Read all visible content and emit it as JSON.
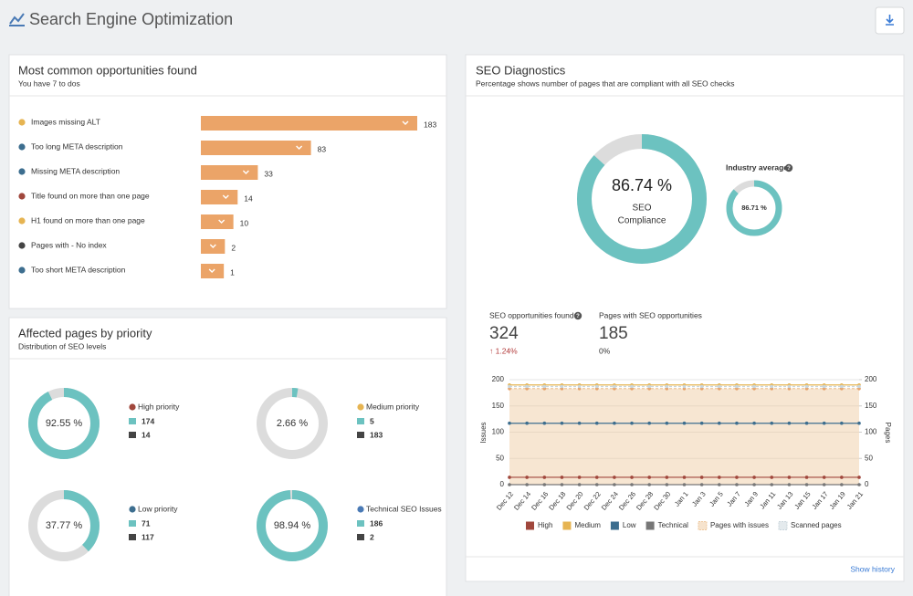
{
  "header": {
    "title": "Search Engine Optimization"
  },
  "opportunities": {
    "title": "Most common opportunities found",
    "subtitle": "You have 7 to dos",
    "bar_color": "#eba468",
    "items": [
      {
        "label": "Images missing ALT",
        "value": 183,
        "color": "#e6b452"
      },
      {
        "label": "Too long META description",
        "value": 83,
        "color": "#3d6e8f"
      },
      {
        "label": "Missing META description",
        "value": 33,
        "color": "#3d6e8f"
      },
      {
        "label": "Title found on more than one page",
        "value": 14,
        "color": "#a0473c"
      },
      {
        "label": "H1 found on more than one page",
        "value": 10,
        "color": "#e6b452"
      },
      {
        "label": "Pages with - No index",
        "value": 2,
        "color": "#444444"
      },
      {
        "label": "Too short META description",
        "value": 1,
        "color": "#3d6e8f"
      }
    ]
  },
  "diagnostics": {
    "title": "SEO Diagnostics",
    "subtitle": "Percentage shows number of pages that are compliant with all SEO checks",
    "compliance": {
      "value": 86.74,
      "label": "86.74 %",
      "caption": [
        "SEO",
        "Compliance"
      ]
    },
    "industry": {
      "title": "Industry average",
      "value": 86.71,
      "label": "86.71 %"
    },
    "ring_color": "#6cc2c0",
    "stats": [
      {
        "label": "SEO opportunities found",
        "value": 324,
        "change": "↑ 1.24%"
      },
      {
        "label": "Pages with SEO opportunities",
        "value": 185,
        "change": "0%"
      }
    ],
    "link": "Show history"
  },
  "chart_data": {
    "type": "line",
    "categories": [
      "Dec 12",
      "Dec 14",
      "Dec 16",
      "Dec 18",
      "Dec 20",
      "Dec 22",
      "Dec 24",
      "Dec 26",
      "Dec 28",
      "Dec 30",
      "Jan 1",
      "Jan 3",
      "Jan 5",
      "Jan 7",
      "Jan 9",
      "Jan 11",
      "Jan 13",
      "Jan 15",
      "Jan 17",
      "Jan 19",
      "Jan 21"
    ],
    "series": [
      {
        "name": "High",
        "color": "#a0473c",
        "values": [
          14,
          14,
          14,
          14,
          14,
          14,
          14,
          14,
          14,
          14,
          14,
          14,
          14,
          14,
          14,
          14,
          14,
          14,
          14,
          14,
          14
        ]
      },
      {
        "name": "Medium",
        "color": "#e6b452",
        "values": [
          190,
          190,
          190,
          190,
          190,
          190,
          190,
          190,
          190,
          190,
          190,
          190,
          190,
          190,
          190,
          190,
          190,
          190,
          190,
          190,
          190
        ]
      },
      {
        "name": "Low",
        "color": "#3d6e8f",
        "values": [
          117,
          117,
          117,
          117,
          117,
          117,
          117,
          117,
          117,
          117,
          117,
          117,
          117,
          117,
          117,
          117,
          117,
          117,
          117,
          117,
          117
        ]
      },
      {
        "name": "Technical",
        "color": "#777777",
        "values": [
          0,
          0,
          0,
          0,
          0,
          0,
          0,
          0,
          0,
          0,
          0,
          0,
          0,
          0,
          0,
          0,
          0,
          0,
          0,
          0,
          0
        ]
      },
      {
        "name": "Pages with issues",
        "color": "#eec79c",
        "axis": "y2",
        "style": "area",
        "values": [
          183,
          183,
          183,
          183,
          183,
          183,
          183,
          183,
          183,
          183,
          183,
          183,
          183,
          183,
          183,
          183,
          183,
          183,
          183,
          183,
          183
        ]
      },
      {
        "name": "Scanned pages",
        "color": "#c9d6dc",
        "axis": "y2",
        "style": "dashed",
        "values": [
          187,
          187,
          187,
          187,
          187,
          187,
          187,
          187,
          187,
          187,
          187,
          187,
          187,
          187,
          187,
          187,
          187,
          187,
          187,
          187,
          187
        ]
      }
    ],
    "ylabel": "Issues",
    "y2label": "Pages",
    "ylim": [
      0,
      200
    ],
    "yticks": [
      0,
      50,
      100,
      150,
      200
    ],
    "y2lim": [
      0,
      200
    ],
    "y2ticks": [
      0,
      50,
      100,
      150,
      200
    ],
    "grid": true,
    "legend": "bottom"
  },
  "priority": {
    "title": "Affected pages by priority",
    "subtitle": "Distribution of SEO levels",
    "items": [
      {
        "label": "High priority",
        "percent": 92.55,
        "percent_label": "92.55 %",
        "color": "#a0473c",
        "pages_with": 174,
        "pages_without": 14
      },
      {
        "label": "Medium priority",
        "percent": 2.66,
        "percent_label": "2.66 %",
        "color": "#e6b452",
        "pages_with": 5,
        "pages_without": 183
      },
      {
        "label": "Low priority",
        "percent": 37.77,
        "percent_label": "37.77 %",
        "color": "#3d6e8f",
        "pages_with": 71,
        "pages_without": 117
      },
      {
        "label": "Technical SEO Issues",
        "percent": 98.94,
        "percent_label": "98.94 %",
        "color": "#4a7ab5",
        "pages_with": 186,
        "pages_without": 2
      }
    ]
  }
}
